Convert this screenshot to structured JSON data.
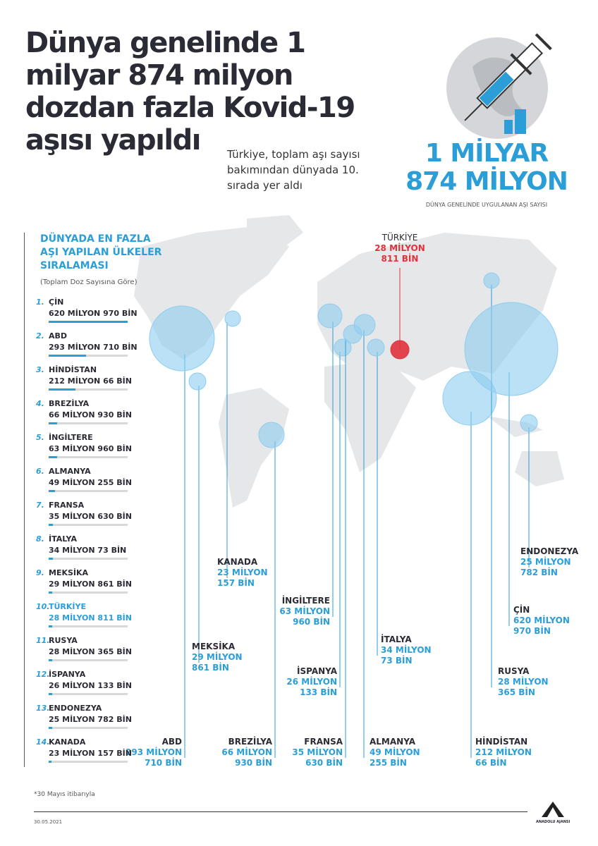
{
  "header": {
    "title": "Dünya genelinde 1 milyar 874 milyon dozdan fazla Kovid-19 aşısı yapıldı",
    "subtitle": "Türkiye, toplam aşı sayısı bakımından dünyada 10. sırada yer aldı"
  },
  "total": {
    "line1": "1 MİLYAR",
    "line2": "874 MİLYON",
    "caption": "DÜNYA GENELİNDE UYGULANAN AŞI SAYISI"
  },
  "ranking": {
    "title": "DÜNYADA EN FAZLA AŞI YAPILAN ÜLKELER SIRALAMASI",
    "subtitle": "(Toplam Doz Sayısına Göre)",
    "items": [
      {
        "rank": "1.",
        "country": "ÇİN",
        "value": "620 MİLYON 970 BİN",
        "doses_million": 620.97
      },
      {
        "rank": "2.",
        "country": "ABD",
        "value": "293 MİLYON 710 BİN",
        "doses_million": 293.71
      },
      {
        "rank": "3.",
        "country": "HİNDİSTAN",
        "value": "212 MİLYON 66 BİN",
        "doses_million": 212.066
      },
      {
        "rank": "4.",
        "country": "BREZİLYA",
        "value": "66 MİLYON 930 BİN",
        "doses_million": 66.93
      },
      {
        "rank": "5.",
        "country": "İNGİLTERE",
        "value": "63 MİLYON 960 BİN",
        "doses_million": 63.96
      },
      {
        "rank": "6.",
        "country": "ALMANYA",
        "value": "49 MİLYON 255 BİN",
        "doses_million": 49.255
      },
      {
        "rank": "7.",
        "country": "FRANSA",
        "value": "35 MİLYON 630 BİN",
        "doses_million": 35.63
      },
      {
        "rank": "8.",
        "country": "İTALYA",
        "value": "34 MİLYON 73 BİN",
        "doses_million": 34.073
      },
      {
        "rank": "9.",
        "country": "MEKSİKA",
        "value": "29 MİLYON 861 BİN",
        "doses_million": 29.861
      },
      {
        "rank": "10.",
        "country": "TÜRKİYE",
        "value": "28 MİLYON 811 BİN",
        "doses_million": 28.811
      },
      {
        "rank": "11.",
        "country": "RUSYA",
        "value": "28 MİLYON 365 BİN",
        "doses_million": 28.365
      },
      {
        "rank": "12.",
        "country": "İSPANYA",
        "value": "26 MİLYON 133 BİN",
        "doses_million": 26.133
      },
      {
        "rank": "13.",
        "country": "ENDONEZYA",
        "value": "25 MİLYON 782 BİN",
        "doses_million": 25.782
      },
      {
        "rank": "14.",
        "country": "KANADA",
        "value": "23 MİLYON 157 BİN",
        "doses_million": 23.157
      }
    ]
  },
  "map_labels": [
    {
      "name": "TÜRKİYE",
      "v1": "28 MİLYON",
      "v2": "811 BİN",
      "highlight": true
    },
    {
      "name": "KANADA",
      "v1": "23 MİLYON",
      "v2": "157 BİN"
    },
    {
      "name": "MEKSİKA",
      "v1": "29 MİLYON",
      "v2": "861 BİN"
    },
    {
      "name": "ABD",
      "v1": "293 MİLYON",
      "v2": "710 BİN"
    },
    {
      "name": "BREZİLYA",
      "v1": "66 MİLYON",
      "v2": "930 BİN"
    },
    {
      "name": "İNGİLTERE",
      "v1": "63 MİLYON",
      "v2": "960 BİN"
    },
    {
      "name": "İSPANYA",
      "v1": "26 MİLYON",
      "v2": "133 BİN"
    },
    {
      "name": "FRANSA",
      "v1": "35 MİLYON",
      "v2": "630 BİN"
    },
    {
      "name": "ALMANYA",
      "v1": "49 MİLYON",
      "v2": "255 BİN"
    },
    {
      "name": "İTALYA",
      "v1": "34 MİLYON",
      "v2": "73 BİN"
    },
    {
      "name": "HİNDİSTAN",
      "v1": "212 MİLYON",
      "v2": "66 BİN"
    },
    {
      "name": "RUSYA",
      "v1": "28 MİLYON",
      "v2": "365 BİN"
    },
    {
      "name": "ÇİN",
      "v1": "620 MİLYON",
      "v2": "970 BİN"
    },
    {
      "name": "ENDONEZYA",
      "v1": "25 MİLYON",
      "v2": "782 BİN"
    }
  ],
  "colors": {
    "accent": "#2b9ed8",
    "turkey": "#e0323c",
    "land": "#e6e7e8",
    "bubble": "#8ecdf0"
  },
  "footer": {
    "note": "*30 Mayıs itibarıyla",
    "date": "30.05.2021",
    "logo": "ANADOLU AJANSI"
  }
}
